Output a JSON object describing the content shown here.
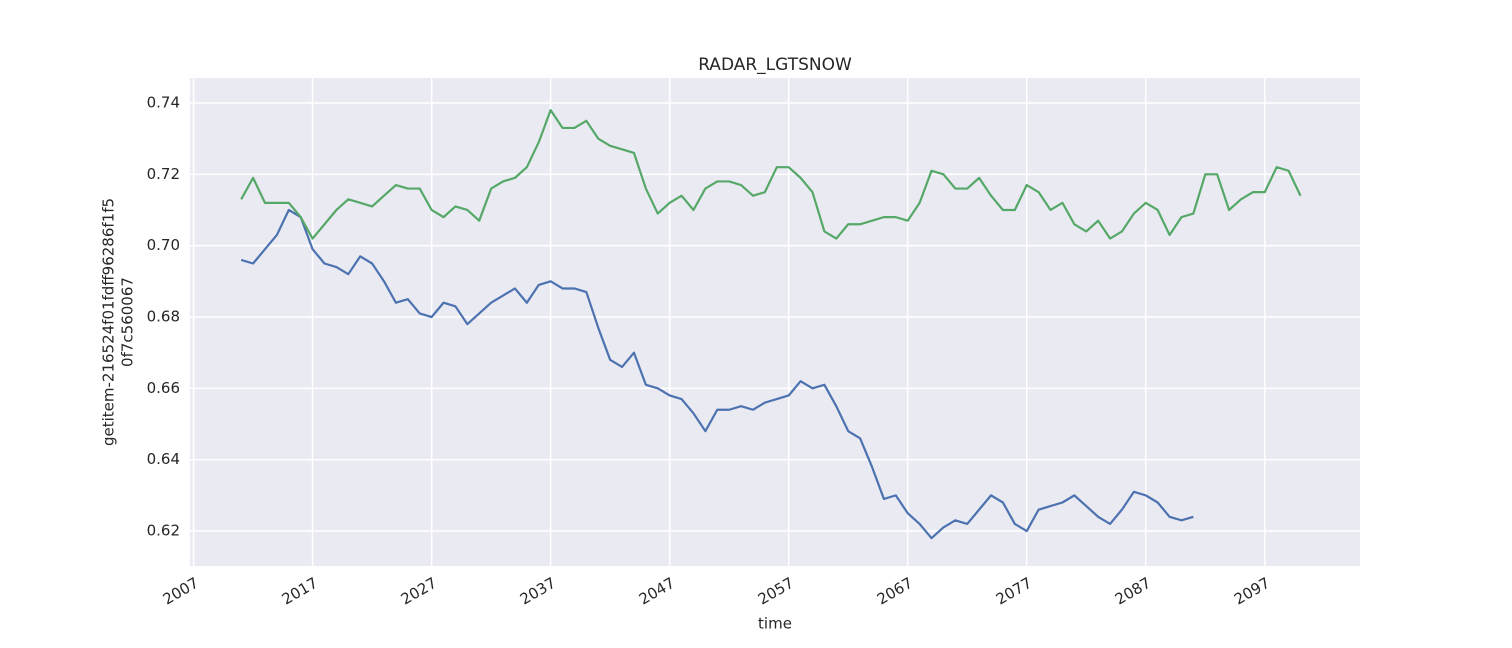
{
  "chart_data": {
    "type": "line",
    "title": "RADAR_LGTSNOW",
    "xlabel": "time",
    "ylabel": [
      "getitem-216524f01fdff96286f1f5",
      "0f7c560067"
    ],
    "x": [
      2011,
      2012,
      2013,
      2014,
      2015,
      2016,
      2017,
      2018,
      2019,
      2020,
      2021,
      2022,
      2023,
      2024,
      2025,
      2026,
      2027,
      2028,
      2029,
      2030,
      2031,
      2032,
      2033,
      2034,
      2035,
      2036,
      2037,
      2038,
      2039,
      2040,
      2041,
      2042,
      2043,
      2044,
      2045,
      2046,
      2047,
      2048,
      2049,
      2050,
      2051,
      2052,
      2053,
      2054,
      2055,
      2056,
      2057,
      2058,
      2059,
      2060,
      2061,
      2062,
      2063,
      2064,
      2065,
      2066,
      2067,
      2068,
      2069,
      2070,
      2071,
      2072,
      2073,
      2074,
      2075,
      2076,
      2077,
      2078,
      2079,
      2080,
      2081,
      2082,
      2083,
      2084,
      2085,
      2086,
      2087,
      2088,
      2089,
      2090,
      2091,
      2092,
      2093,
      2094,
      2095,
      2096,
      2097,
      2098,
      2099,
      2100
    ],
    "series": [
      {
        "color": "#4c72b0",
        "values": [
          0.696,
          0.695,
          0.699,
          0.703,
          0.71,
          0.708,
          0.699,
          0.695,
          0.694,
          0.692,
          0.697,
          0.695,
          0.69,
          0.684,
          0.685,
          0.681,
          0.68,
          0.684,
          0.683,
          0.678,
          0.681,
          0.684,
          0.686,
          0.688,
          0.684,
          0.689,
          0.69,
          0.688,
          0.688,
          0.687,
          0.677,
          0.668,
          0.666,
          0.67,
          0.661,
          0.66,
          0.658,
          0.657,
          0.653,
          0.648,
          0.654,
          0.654,
          0.655,
          0.654,
          0.656,
          0.657,
          0.658,
          0.662,
          0.66,
          0.661,
          0.655,
          0.648,
          0.646,
          0.638,
          0.629,
          0.63,
          0.625,
          0.622,
          0.618,
          0.621,
          0.623,
          0.622,
          0.626,
          0.63,
          0.628,
          0.622,
          0.62,
          0.626,
          0.627,
          0.628,
          0.63,
          0.627,
          0.624,
          0.622,
          0.626,
          0.631,
          0.63,
          0.628,
          0.624,
          0.623,
          0.624,
          null,
          null,
          null,
          null,
          null,
          null,
          null,
          null,
          null
        ]
      },
      {
        "color": "#55a868",
        "values": [
          0.713,
          0.719,
          0.712,
          0.712,
          0.712,
          0.708,
          0.702,
          0.706,
          0.71,
          0.713,
          0.712,
          0.711,
          0.714,
          0.717,
          0.716,
          0.716,
          0.71,
          0.708,
          0.711,
          0.71,
          0.707,
          0.716,
          0.718,
          0.719,
          0.722,
          0.729,
          0.738,
          0.733,
          0.733,
          0.735,
          0.73,
          0.728,
          0.727,
          0.726,
          0.716,
          0.709,
          0.712,
          0.714,
          0.71,
          0.716,
          0.718,
          0.718,
          0.717,
          0.714,
          0.715,
          0.722,
          0.722,
          0.719,
          0.715,
          0.704,
          0.702,
          0.706,
          0.706,
          0.707,
          0.708,
          0.708,
          0.707,
          0.712,
          0.721,
          0.72,
          0.716,
          0.716,
          0.719,
          0.714,
          0.71,
          0.71,
          0.717,
          0.715,
          0.71,
          0.712,
          0.706,
          0.704,
          0.707,
          0.702,
          0.704,
          0.709,
          0.712,
          0.71,
          0.703,
          0.708,
          0.709,
          0.72,
          0.72,
          0.71,
          0.713,
          0.715,
          0.715,
          0.722,
          0.721,
          0.714
        ]
      }
    ],
    "xlim": [
      2006.7,
      2105
    ],
    "xticks": [
      2007,
      2017,
      2027,
      2037,
      2047,
      2057,
      2067,
      2077,
      2087,
      2097
    ],
    "ylim": [
      0.6102,
      0.747
    ],
    "yticks": [
      0.62,
      0.64,
      0.66,
      0.68,
      {
        "value": 0.7,
        "label": "0.70"
      },
      0.72,
      0.74
    ],
    "grid": true,
    "background": "#eaeaf2"
  }
}
